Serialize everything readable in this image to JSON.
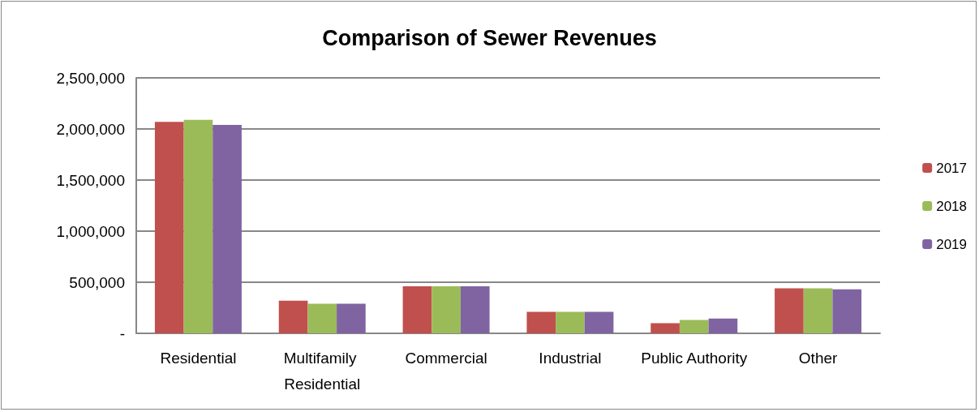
{
  "chart_data": {
    "type": "bar",
    "title": "Comparison of Sewer Revenues",
    "categories": [
      "Residential",
      "Multifamily Residential",
      "Commercial",
      "Industrial",
      "Public Authority",
      "Other"
    ],
    "series": [
      {
        "name": "2017",
        "color": "#c0504d",
        "values": [
          2070000,
          320000,
          460000,
          210000,
          100000,
          440000
        ]
      },
      {
        "name": "2018",
        "color": "#9bbb59",
        "values": [
          2090000,
          290000,
          460000,
          210000,
          130000,
          440000
        ]
      },
      {
        "name": "2019",
        "color": "#8064a2",
        "values": [
          2040000,
          290000,
          460000,
          210000,
          145000,
          430000
        ]
      }
    ],
    "ylim": [
      0,
      2500000
    ],
    "yticks": [
      {
        "value": 0,
        "label": "-"
      },
      {
        "value": 500000,
        "label": "500,000"
      },
      {
        "value": 1000000,
        "label": "1,000,000"
      },
      {
        "value": 1500000,
        "label": "1,500,000"
      },
      {
        "value": 2000000,
        "label": "2,000,000"
      },
      {
        "value": 2500000,
        "label": "2,500,000"
      }
    ],
    "grid": true,
    "legend": "right"
  }
}
